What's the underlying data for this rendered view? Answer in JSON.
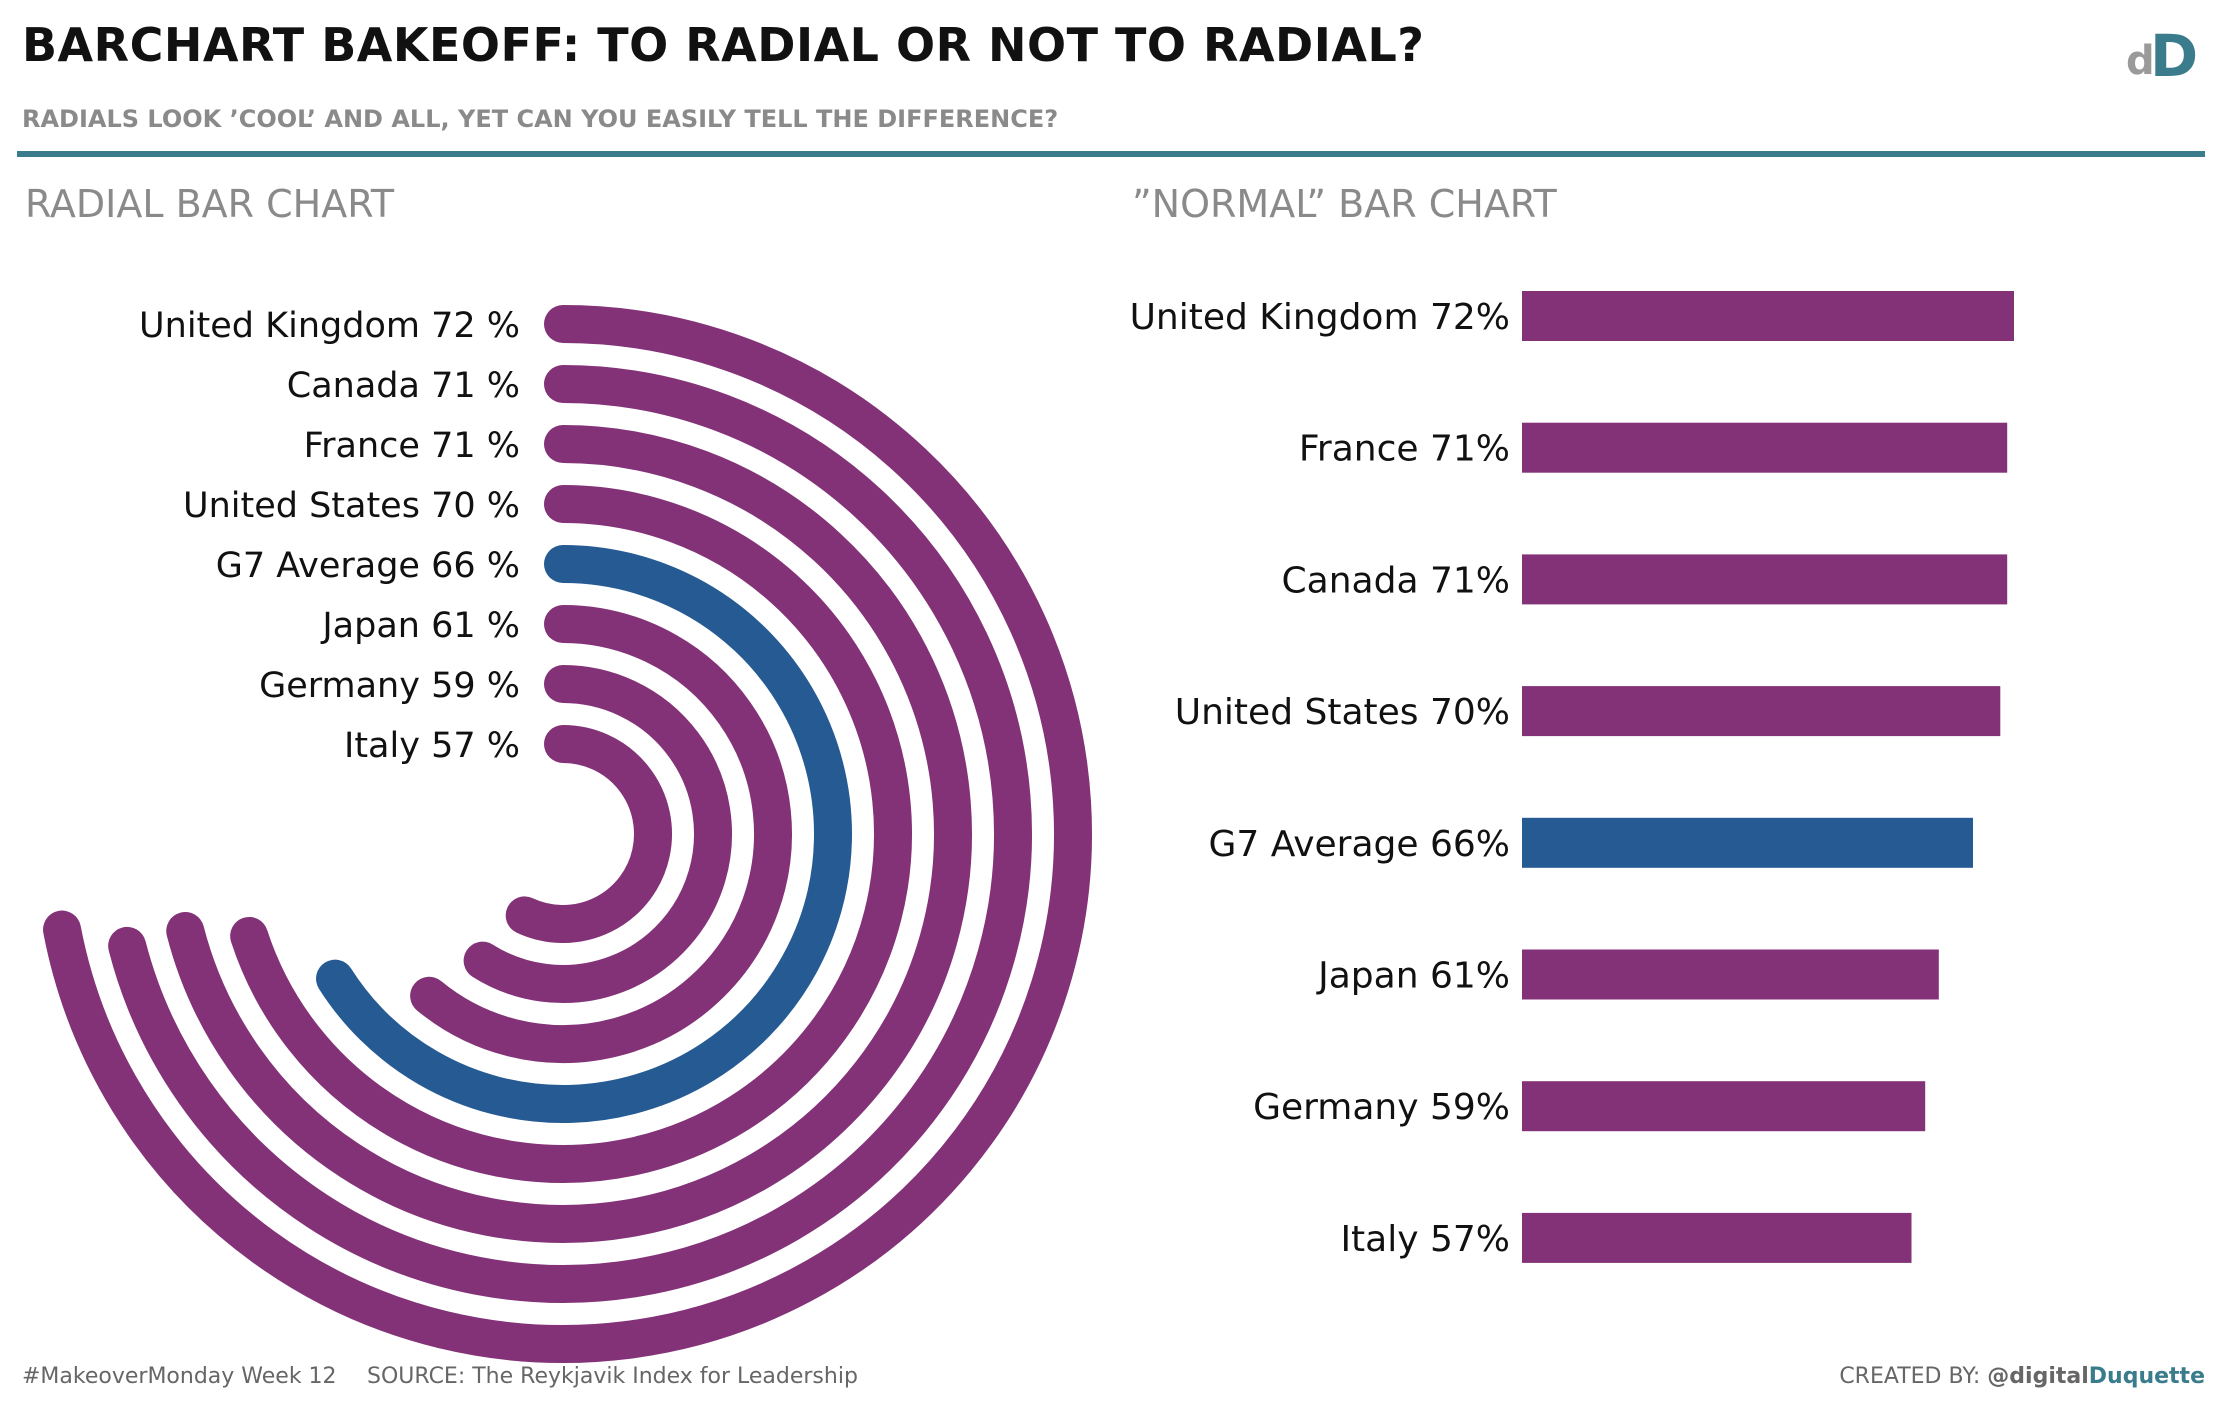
{
  "header": {
    "title": "BARCHART BAKEOFF: TO RADIAL OR NOT TO RADIAL?",
    "subtitle": "RADIALS LOOK ’COOL’ AND ALL, YET CAN YOU EASILY TELL THE DIFFERENCE?",
    "logo": {
      "letter_small": "d",
      "letter_big": "D"
    }
  },
  "sections": {
    "radial_heading": "RADIAL BAR CHART",
    "normal_heading": "”NORMAL” BAR CHART"
  },
  "colors": {
    "bar": "#833277",
    "highlight": "#255a93",
    "accent": "#3a7b8c",
    "muted": "#8a8a8a"
  },
  "chart_data": [
    {
      "type": "radial-bar",
      "title": "RADIAL BAR CHART",
      "unit": "%",
      "categories": [
        "United Kingdom",
        "Canada",
        "France",
        "United States",
        "G7 Average",
        "Japan",
        "Germany",
        "Italy"
      ],
      "values": [
        72,
        71,
        71,
        70,
        66,
        61,
        59,
        57
      ],
      "labels": [
        "72 %",
        "71 %",
        "71 %",
        "70 %",
        "66 %",
        "61 %",
        "59 %",
        "57 %"
      ],
      "highlight": "G7 Average",
      "scale_max": 100
    },
    {
      "type": "bar",
      "orientation": "horizontal",
      "title": "”NORMAL” BAR CHART",
      "unit": "%",
      "categories": [
        "United Kingdom",
        "France",
        "Canada",
        "United States",
        "G7 Average",
        "Japan",
        "Germany",
        "Italy"
      ],
      "values": [
        72,
        71,
        71,
        70,
        66,
        61,
        59,
        57
      ],
      "labels": [
        "72%",
        "71%",
        "71%",
        "70%",
        "66%",
        "61%",
        "59%",
        "57%"
      ],
      "highlight": "G7 Average",
      "xlim": [
        0,
        72
      ]
    }
  ],
  "footer": {
    "hashtag": "#MakeoverMonday Week 12",
    "source": "SOURCE: The Reykjavik Index for Leadership",
    "credit_prefix": "CREATED BY: ",
    "credit_handle_a": "@digital",
    "credit_handle_b": "Duquette"
  }
}
